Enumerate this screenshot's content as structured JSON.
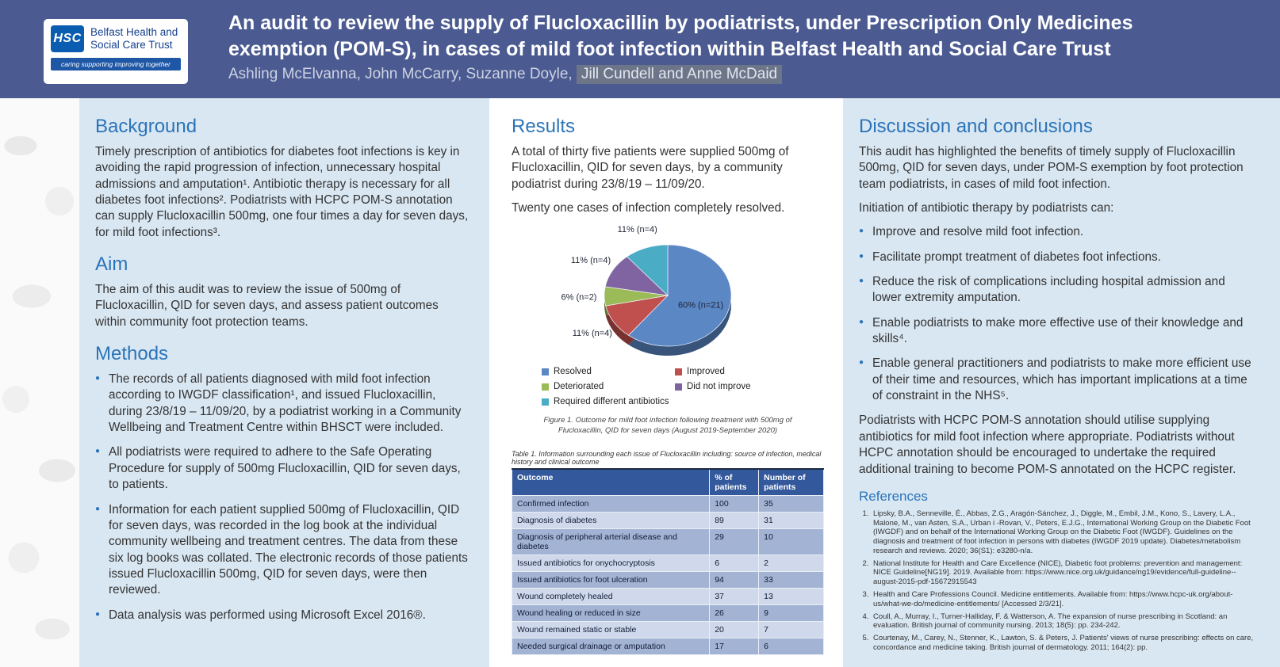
{
  "header": {
    "title": "An audit to review the supply of Flucloxacillin by podiatrists, under Prescription Only Medicines exemption (POM-S), in cases of mild foot infection within Belfast Health and Social Care Trust",
    "authors_prefix": "Ashling McElvanna, John McCarry, Suzanne Doyle, ",
    "authors_highlight": "Jill Cundell and Anne McDaid",
    "logo": {
      "hsc": "HSC",
      "org_line1": "Belfast Health and",
      "org_line2": "Social Care Trust",
      "tagline": "caring supporting improving together"
    }
  },
  "left": {
    "background_heading": "Background",
    "background_text": "Timely prescription of antibiotics for diabetes foot infections is key in avoiding the rapid progression of infection, unnecessary hospital admissions and amputation¹. Antibiotic therapy is necessary for all diabetes foot infections². Podiatrists with HCPC POM-S annotation can supply Flucloxacillin 500mg, one four times a day for seven days, for mild foot infections³.",
    "aim_heading": "Aim",
    "aim_text": "The aim of this audit was to review the issue of 500mg of Flucloxacillin, QID for seven days, and assess patient outcomes within community foot protection teams.",
    "methods_heading": "Methods",
    "methods_bullets": [
      "The records of all patients diagnosed with mild foot infection according to IWGDF classification¹, and issued Flucloxacillin, during 23/8/19 – 11/09/20, by a podiatrist working in a Community Wellbeing and Treatment Centre within BHSCT were included.",
      "All podiatrists were required to adhere to the Safe Operating Procedure for supply of 500mg Flucloxacillin, QID for seven days, to patients.",
      "Information for each patient supplied 500mg of Flucloxacillin, QID for seven days, was recorded in the log book at the individual community wellbeing and treatment centres. The data from these six log books was collated. The electronic records of those patients issued Flucloxacillin 500mg, QID for seven days, were then reviewed.",
      "Data analysis was performed using Microsoft Excel 2016®."
    ]
  },
  "middle": {
    "results_heading": "Results",
    "results_p1": "A total of thirty five patients were supplied 500mg of Flucloxacillin, QID for seven days, by a community podiatrist during 23/8/19 – 11/09/20.",
    "results_p2": "Twenty one cases of infection completely resolved.",
    "table_caption": "Table 1. Information surrounding each issue of Flucloxacillin including: source of infection, medical history and clinical outcome",
    "table": {
      "headers": [
        "Outcome",
        "% of patients",
        "Number of patients"
      ],
      "rows": [
        [
          "Confirmed infection",
          "100",
          "35"
        ],
        [
          "Diagnosis of diabetes",
          "89",
          "31"
        ],
        [
          "Diagnosis of peripheral arterial disease and diabetes",
          "29",
          "10"
        ],
        [
          "Issued antibiotics for onychocryptosis",
          "6",
          "2"
        ],
        [
          "Issued antibiotics for foot ulceration",
          "94",
          "33"
        ],
        [
          "Wound completely healed",
          "37",
          "13"
        ],
        [
          "Wound healing or reduced in size",
          "26",
          "9"
        ],
        [
          "Wound remained static or stable",
          "20",
          "7"
        ],
        [
          "Needed surgical drainage or amputation",
          "17",
          "6"
        ]
      ]
    }
  },
  "chart_data": {
    "type": "pie",
    "title": "Figure 1. Outcome for mild foot infection following treatment with 500mg of Flucloxacillin, QID for seven days (August 2019-September 2020)",
    "labels": [
      "Resolved",
      "Improved",
      "Deteriorated",
      "Did not improve",
      "Required different antibiotics"
    ],
    "values": [
      60,
      11,
      6,
      11,
      11
    ],
    "counts": [
      21,
      4,
      2,
      4,
      4
    ],
    "slice_labels": [
      "60% (n=21)",
      "11% (n=4)",
      "6% (n=2)",
      "11% (n=4)",
      "11% (n=4)"
    ],
    "colors": [
      "#5b87c5",
      "#c0504d",
      "#9bbb59",
      "#8064a2",
      "#4bacc6"
    ],
    "legend_position": "bottom",
    "effect": "3d"
  },
  "right": {
    "discussion_heading": "Discussion and conclusions",
    "discussion_p1": "This audit has highlighted the benefits of timely supply of Flucloxacillin 500mg, QID for seven days, under POM-S exemption by foot protection team podiatrists, in cases of mild foot infection.",
    "discussion_p2": "Initiation of antibiotic therapy by podiatrists can:",
    "discussion_bullets": [
      "Improve and resolve mild foot infection.",
      "Facilitate prompt treatment of diabetes foot infections.",
      "Reduce the risk of complications including hospital admission and lower extremity amputation.",
      "Enable podiatrists to make more effective use of their knowledge and skills⁴.",
      "Enable general practitioners and podiatrists to make more efficient use of their time and resources, which has important implications at a time of constraint in the NHS⁵."
    ],
    "discussion_p3": "Podiatrists with HCPC POM-S annotation should utilise supplying antibiotics for mild foot infection where appropriate. Podiatrists without HCPC annotation should be encouraged to undertake the required additional training to become POM-S annotated on the HCPC register.",
    "references_heading": "References",
    "references": [
      "Lipsky, B.A., Senneville, É., Abbas, Z.G., Aragón-Sánchez, J., Diggle, M., Embil, J.M., Kono, S., Lavery, L.A., Malone, M., van Asten, S.A., Urban i -Rovan, V., Peters, E.J.G., International Working Group on the Diabetic Foot (IWGDF) and on behalf of the International Working Group on the Diabetic Foot (IWGDF). Guidelines on the diagnosis and treatment of foot infection in persons with diabetes (IWGDF 2019 update). Diabetes/metabolism research and reviews. 2020; 36(S1): e3280-n/a.",
      "National Institute for Health and Care Excellence (NICE), Diabetic foot problems: prevention and management: NICE Guideline[NG19]. 2019. Available from: https://www.nice.org.uk/guidance/ng19/evidence/full-guideline--august-2015-pdf-15672915543",
      "Health and Care Professions Council. Medicine entitlements. Available from: https://www.hcpc-uk.org/about-us/what-we-do/medicine-entitlements/ [Accessed 2/3/21].",
      "Coull, A., Murray, I., Turner-Halliday, F. & Watterson, A. The expansion of nurse prescribing in Scotland: an evaluation. British journal of community nursing. 2013; 18(5): pp. 234-242.",
      "Courtenay, M., Carey, N., Stenner, K., Lawton, S. & Peters, J. Patients' views of nurse prescribing: effects on care, concordance and medicine taking. British journal of dermatology. 2011; 164(2): pp."
    ]
  }
}
